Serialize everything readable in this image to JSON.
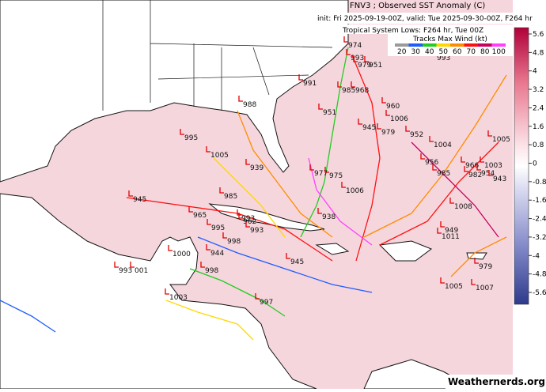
{
  "header": {
    "title": "FNV3 ; Observed SST Anomaly (C)",
    "subtitle": "init: Fri 2025-09-19-00Z, valid: Tue 2025-09-30-00Z, F264 hr",
    "lows_title": "Tropical System Lows: F264 hr, Tue 00Z"
  },
  "wind_legend": {
    "title": "Tracks Max Wind (kt)",
    "levels": [
      {
        "value": 20,
        "color": "#9a9a9a"
      },
      {
        "value": 30,
        "color": "#1e5cff"
      },
      {
        "value": 40,
        "color": "#22cc22"
      },
      {
        "value": 50,
        "color": "#ffd700"
      },
      {
        "value": 60,
        "color": "#ff8c00"
      },
      {
        "value": 70,
        "color": "#ff1010"
      },
      {
        "value": 80,
        "color": "#c80060"
      },
      {
        "value": 100,
        "color": "#ff40ff"
      }
    ]
  },
  "colorbar": {
    "ticks": [
      5.6,
      4.8,
      4,
      3.2,
      2.4,
      1.6,
      0.8,
      0,
      -0.8,
      -1.6,
      -2.4,
      -3.2,
      -4,
      -4.8,
      -5.6
    ]
  },
  "storm_labels": [
    "974",
    "993",
    "979",
    "951",
    "993",
    "991",
    "985",
    "968",
    "988",
    "960",
    "951",
    "1006",
    "945",
    "979",
    "952",
    "995",
    "1005",
    "1004",
    "1005",
    "956",
    "966",
    "1003",
    "939",
    "985",
    "982",
    "954",
    "943",
    "977",
    "975",
    "1006",
    "985",
    "945",
    "1008",
    "965",
    "993",
    "962",
    "993",
    "995",
    "938",
    "949",
    "1011",
    "998",
    "1000",
    "944",
    "945",
    "979",
    "993",
    "001",
    "998",
    "1005",
    "1007",
    "997",
    "1003"
  ],
  "footer": "Weathernerds.org"
}
